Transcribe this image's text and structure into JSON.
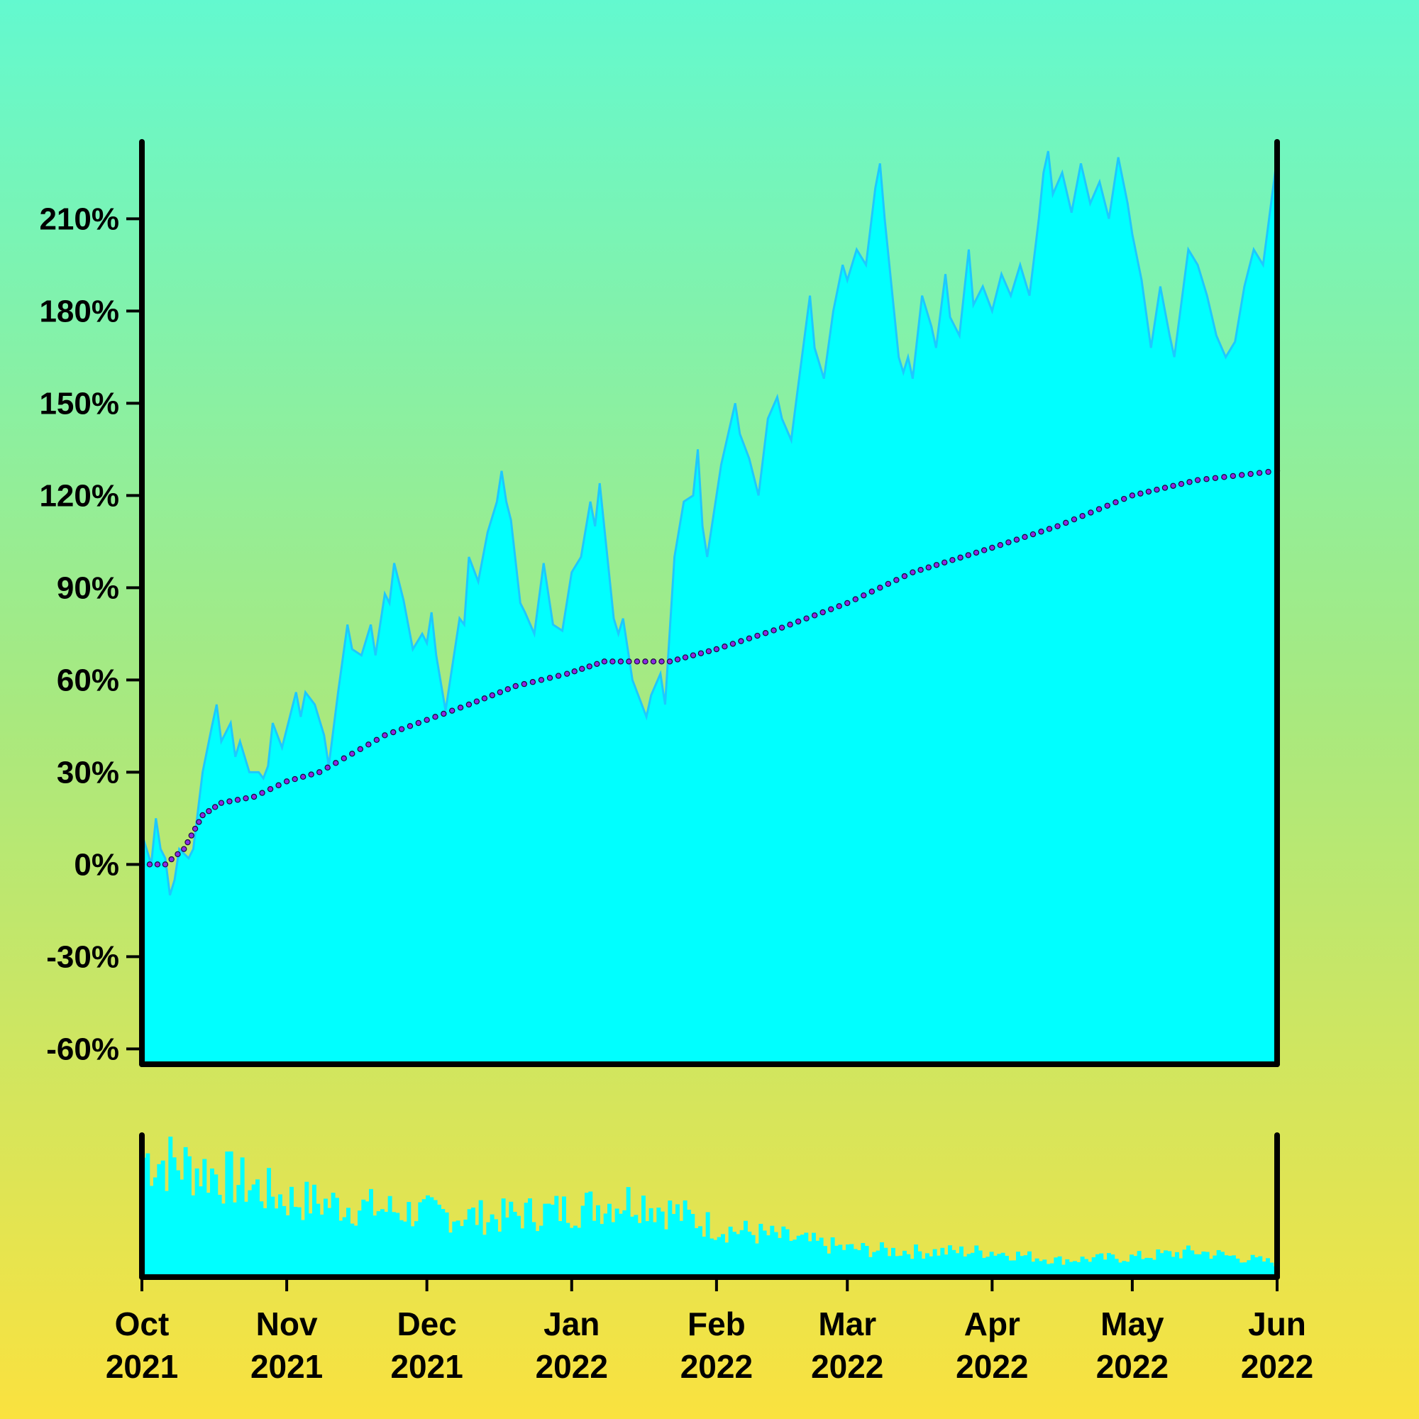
{
  "chart_data": {
    "type": "area",
    "title": "",
    "xlabel": "",
    "ylabel": "",
    "x_range": [
      "2021-10-01",
      "2022-06-01"
    ],
    "ylim": [
      -65,
      235
    ],
    "y_ticks": [
      -60,
      -30,
      0,
      30,
      60,
      90,
      120,
      150,
      180,
      210
    ],
    "y_tick_labels": [
      "-60%",
      "-30%",
      "0%",
      "30%",
      "60%",
      "90%",
      "120%",
      "150%",
      "180%",
      "210%"
    ],
    "x_ticks": [
      {
        "date": "2021-10-01",
        "month": "Oct",
        "year": "2021"
      },
      {
        "date": "2021-11-01",
        "month": "Nov",
        "year": "2021"
      },
      {
        "date": "2021-12-01",
        "month": "Dec",
        "year": "2021"
      },
      {
        "date": "2022-01-01",
        "month": "Jan",
        "year": "2022"
      },
      {
        "date": "2022-02-01",
        "month": "Feb",
        "year": "2022"
      },
      {
        "date": "2022-03-01",
        "month": "Mar",
        "year": "2022"
      },
      {
        "date": "2022-04-01",
        "month": "Apr",
        "year": "2022"
      },
      {
        "date": "2022-05-01",
        "month": "May",
        "year": "2022"
      },
      {
        "date": "2022-06-01",
        "month": "Jun",
        "year": "2022"
      }
    ],
    "grid": false,
    "legend": "none",
    "series": [
      {
        "kind": "area",
        "color": "#00ffff",
        "line_color": "#1ec8ff",
        "points": [
          [
            "2021-10-01",
            10
          ],
          [
            "2021-10-03",
            0
          ],
          [
            "2021-10-04",
            15
          ],
          [
            "2021-10-05",
            5
          ],
          [
            "2021-10-06",
            2
          ],
          [
            "2021-10-07",
            -10
          ],
          [
            "2021-10-08",
            -5
          ],
          [
            "2021-10-09",
            5
          ],
          [
            "2021-10-11",
            2
          ],
          [
            "2021-10-12",
            5
          ],
          [
            "2021-10-14",
            30
          ],
          [
            "2021-10-16",
            45
          ],
          [
            "2021-10-17",
            52
          ],
          [
            "2021-10-18",
            40
          ],
          [
            "2021-10-20",
            46
          ],
          [
            "2021-10-21",
            35
          ],
          [
            "2021-10-22",
            40
          ],
          [
            "2021-10-24",
            30
          ],
          [
            "2021-10-26",
            30
          ],
          [
            "2021-10-27",
            28
          ],
          [
            "2021-10-28",
            32
          ],
          [
            "2021-10-29",
            46
          ],
          [
            "2021-10-31",
            38
          ],
          [
            "2021-11-03",
            56
          ],
          [
            "2021-11-04",
            48
          ],
          [
            "2021-11-05",
            56
          ],
          [
            "2021-11-07",
            52
          ],
          [
            "2021-11-09",
            42
          ],
          [
            "2021-11-10",
            32
          ],
          [
            "2021-11-12",
            56
          ],
          [
            "2021-11-14",
            78
          ],
          [
            "2021-11-15",
            70
          ],
          [
            "2021-11-17",
            68
          ],
          [
            "2021-11-19",
            78
          ],
          [
            "2021-11-20",
            68
          ],
          [
            "2021-11-22",
            88
          ],
          [
            "2021-11-23",
            85
          ],
          [
            "2021-11-24",
            98
          ],
          [
            "2021-11-26",
            86
          ],
          [
            "2021-11-28",
            70
          ],
          [
            "2021-11-30",
            75
          ],
          [
            "2021-12-01",
            72
          ],
          [
            "2021-12-02",
            82
          ],
          [
            "2021-12-03",
            68
          ],
          [
            "2021-12-05",
            50
          ],
          [
            "2021-12-08",
            80
          ],
          [
            "2021-12-09",
            78
          ],
          [
            "2021-12-10",
            100
          ],
          [
            "2021-12-12",
            92
          ],
          [
            "2021-12-14",
            108
          ],
          [
            "2021-12-16",
            118
          ],
          [
            "2021-12-17",
            128
          ],
          [
            "2021-12-18",
            118
          ],
          [
            "2021-12-19",
            112
          ],
          [
            "2021-12-21",
            85
          ],
          [
            "2021-12-22",
            82
          ],
          [
            "2021-12-24",
            75
          ],
          [
            "2021-12-26",
            98
          ],
          [
            "2021-12-28",
            78
          ],
          [
            "2021-12-30",
            76
          ],
          [
            "2022-01-01",
            95
          ],
          [
            "2022-01-03",
            100
          ],
          [
            "2022-01-05",
            118
          ],
          [
            "2022-01-06",
            110
          ],
          [
            "2022-01-07",
            124
          ],
          [
            "2022-01-10",
            80
          ],
          [
            "2022-01-11",
            75
          ],
          [
            "2022-01-12",
            80
          ],
          [
            "2022-01-14",
            60
          ],
          [
            "2022-01-16",
            52
          ],
          [
            "2022-01-17",
            48
          ],
          [
            "2022-01-18",
            55
          ],
          [
            "2022-01-20",
            62
          ],
          [
            "2022-01-21",
            52
          ],
          [
            "2022-01-23",
            100
          ],
          [
            "2022-01-25",
            118
          ],
          [
            "2022-01-27",
            120
          ],
          [
            "2022-01-28",
            135
          ],
          [
            "2022-01-29",
            110
          ],
          [
            "2022-01-30",
            100
          ],
          [
            "2022-02-02",
            130
          ],
          [
            "2022-02-05",
            150
          ],
          [
            "2022-02-06",
            140
          ],
          [
            "2022-02-08",
            132
          ],
          [
            "2022-02-10",
            120
          ],
          [
            "2022-02-12",
            145
          ],
          [
            "2022-02-14",
            152
          ],
          [
            "2022-02-15",
            145
          ],
          [
            "2022-02-17",
            138
          ],
          [
            "2022-02-18",
            150
          ],
          [
            "2022-02-21",
            185
          ],
          [
            "2022-02-22",
            168
          ],
          [
            "2022-02-24",
            158
          ],
          [
            "2022-02-26",
            180
          ],
          [
            "2022-02-28",
            195
          ],
          [
            "2022-03-01",
            190
          ],
          [
            "2022-03-03",
            200
          ],
          [
            "2022-03-05",
            195
          ],
          [
            "2022-03-07",
            220
          ],
          [
            "2022-03-08",
            228
          ],
          [
            "2022-03-09",
            210
          ],
          [
            "2022-03-10",
            195
          ],
          [
            "2022-03-12",
            165
          ],
          [
            "2022-03-13",
            160
          ],
          [
            "2022-03-14",
            165
          ],
          [
            "2022-03-15",
            158
          ],
          [
            "2022-03-17",
            185
          ],
          [
            "2022-03-19",
            175
          ],
          [
            "2022-03-20",
            168
          ],
          [
            "2022-03-22",
            192
          ],
          [
            "2022-03-23",
            178
          ],
          [
            "2022-03-25",
            172
          ],
          [
            "2022-03-27",
            200
          ],
          [
            "2022-03-28",
            182
          ],
          [
            "2022-03-30",
            188
          ],
          [
            "2022-04-01",
            180
          ],
          [
            "2022-04-03",
            192
          ],
          [
            "2022-04-05",
            185
          ],
          [
            "2022-04-07",
            195
          ],
          [
            "2022-04-09",
            185
          ],
          [
            "2022-04-11",
            210
          ],
          [
            "2022-04-12",
            225
          ],
          [
            "2022-04-13",
            232
          ],
          [
            "2022-04-14",
            218
          ],
          [
            "2022-04-16",
            225
          ],
          [
            "2022-04-18",
            212
          ],
          [
            "2022-04-20",
            228
          ],
          [
            "2022-04-22",
            215
          ],
          [
            "2022-04-24",
            222
          ],
          [
            "2022-04-26",
            210
          ],
          [
            "2022-04-28",
            230
          ],
          [
            "2022-04-30",
            215
          ],
          [
            "2022-05-01",
            205
          ],
          [
            "2022-05-03",
            190
          ],
          [
            "2022-05-05",
            168
          ],
          [
            "2022-05-07",
            188
          ],
          [
            "2022-05-09",
            172
          ],
          [
            "2022-05-10",
            165
          ],
          [
            "2022-05-13",
            200
          ],
          [
            "2022-05-15",
            195
          ],
          [
            "2022-05-17",
            185
          ],
          [
            "2022-05-19",
            172
          ],
          [
            "2022-05-21",
            165
          ],
          [
            "2022-05-23",
            170
          ],
          [
            "2022-05-25",
            188
          ],
          [
            "2022-05-27",
            200
          ],
          [
            "2022-05-29",
            195
          ],
          [
            "2022-06-01",
            230
          ]
        ]
      },
      {
        "kind": "dotted-line",
        "color": "#8a2be2",
        "points": [
          [
            "2021-10-01",
            0
          ],
          [
            "2021-10-06",
            0
          ],
          [
            "2021-10-10",
            5
          ],
          [
            "2021-10-14",
            16
          ],
          [
            "2021-10-18",
            20
          ],
          [
            "2021-10-25",
            22
          ],
          [
            "2021-11-01",
            27
          ],
          [
            "2021-11-08",
            30
          ],
          [
            "2021-11-15",
            36
          ],
          [
            "2021-11-22",
            42
          ],
          [
            "2021-12-01",
            47
          ],
          [
            "2021-12-10",
            52
          ],
          [
            "2021-12-20",
            58
          ],
          [
            "2021-12-31",
            62
          ],
          [
            "2022-01-08",
            66
          ],
          [
            "2022-01-15",
            66
          ],
          [
            "2022-01-22",
            66
          ],
          [
            "2022-02-01",
            70
          ],
          [
            "2022-02-15",
            77
          ],
          [
            "2022-03-01",
            85
          ],
          [
            "2022-03-15",
            95
          ],
          [
            "2022-04-01",
            103
          ],
          [
            "2022-04-15",
            110
          ],
          [
            "2022-05-01",
            120
          ],
          [
            "2022-05-15",
            125
          ],
          [
            "2022-06-01",
            128
          ]
        ]
      }
    ],
    "volume_panel": {
      "type": "bar",
      "color": "#00ffff",
      "note_levels": [
        [
          "2021-10-01",
          0.85
        ],
        [
          "2021-10-15",
          0.75
        ],
        [
          "2021-11-01",
          0.55
        ],
        [
          "2021-11-15",
          0.5
        ],
        [
          "2021-12-01",
          0.45
        ],
        [
          "2021-12-15",
          0.42
        ],
        [
          "2022-01-01",
          0.48
        ],
        [
          "2022-01-15",
          0.55
        ],
        [
          "2022-02-01",
          0.35
        ],
        [
          "2022-02-15",
          0.28
        ],
        [
          "2022-03-01",
          0.2
        ],
        [
          "2022-03-15",
          0.18
        ],
        [
          "2022-04-01",
          0.18
        ],
        [
          "2022-04-15",
          0.12
        ],
        [
          "2022-05-01",
          0.14
        ],
        [
          "2022-05-15",
          0.18
        ],
        [
          "2022-06-01",
          0.1
        ]
      ]
    }
  }
}
